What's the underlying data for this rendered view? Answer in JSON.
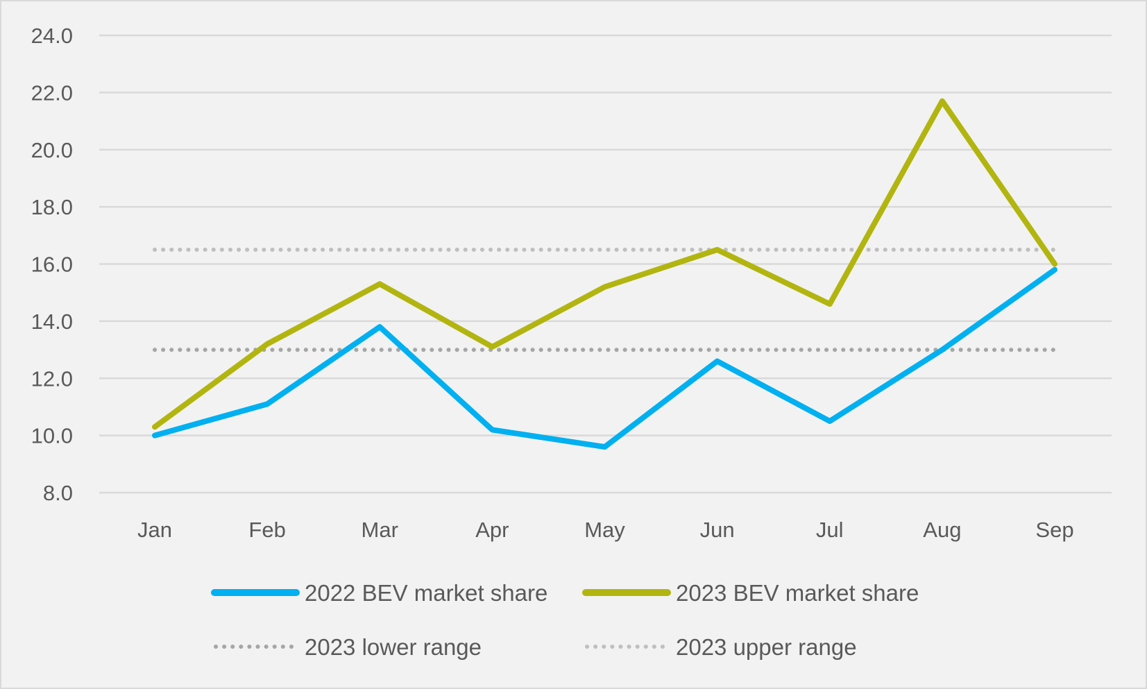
{
  "chart_data": {
    "type": "line",
    "title": "",
    "xlabel": "",
    "ylabel": "",
    "categories": [
      "Jan",
      "Feb",
      "Mar",
      "Apr",
      "May",
      "Jun",
      "Jul",
      "Aug",
      "Sep"
    ],
    "ylim": [
      8.0,
      24.0
    ],
    "yticks": [
      "8.0",
      "10.0",
      "12.0",
      "14.0",
      "16.0",
      "18.0",
      "20.0",
      "22.0",
      "24.0"
    ],
    "grid": true,
    "legend_position": "bottom",
    "series": [
      {
        "name": "2022 BEV market share",
        "values": [
          10.0,
          11.1,
          13.8,
          10.2,
          9.6,
          12.6,
          10.5,
          13.0,
          15.8
        ],
        "color": "#00b0f0",
        "style": "solid"
      },
      {
        "name": "2023 BEV market share",
        "values": [
          10.3,
          13.2,
          15.3,
          13.1,
          15.2,
          16.5,
          14.6,
          21.7,
          16.0
        ],
        "color": "#b2b50f",
        "style": "solid"
      },
      {
        "name": "2023 lower range",
        "values": [
          13.0,
          13.0,
          13.0,
          13.0,
          13.0,
          13.0,
          13.0,
          13.0,
          13.0
        ],
        "color": "#a6a6a6",
        "style": "dotted"
      },
      {
        "name": "2023 upper range",
        "values": [
          16.5,
          16.5,
          16.5,
          16.5,
          16.5,
          16.5,
          16.5,
          16.5,
          16.5
        ],
        "color": "#bfbfbf",
        "style": "dotted"
      }
    ]
  }
}
